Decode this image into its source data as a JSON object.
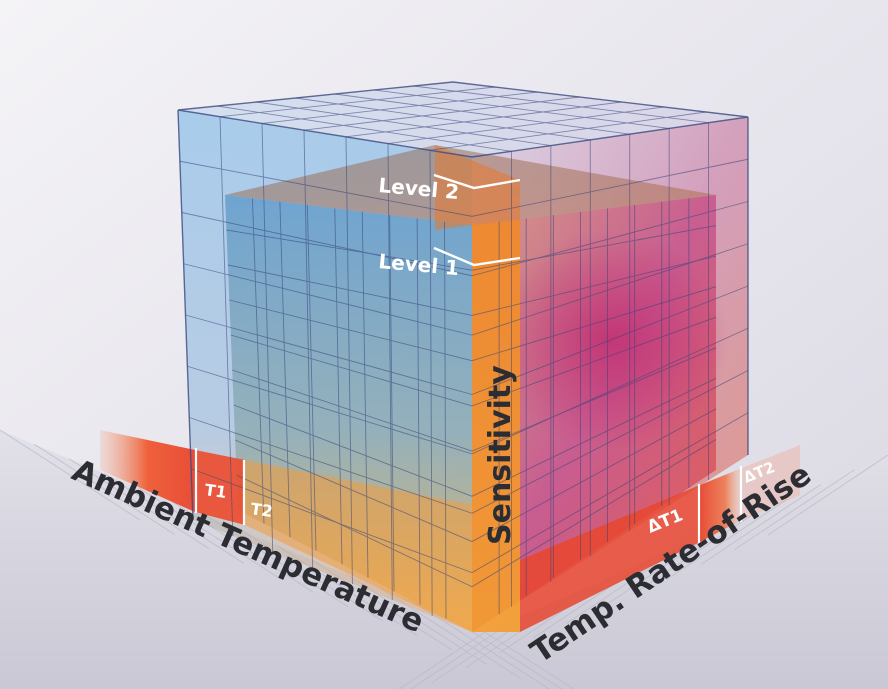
{
  "diagram": {
    "labels": {
      "level_2": "Level 2",
      "level_1": "Level 1",
      "sensitivity": "Sensitivity",
      "t1": "T1",
      "t2": "T2",
      "delta_t1": "ΔT1",
      "delta_t2": "ΔT2",
      "ambient_temperature": "Ambient Temperature",
      "temp_rate_of_rise": "Temp. Rate-of-Rise"
    },
    "colors": {
      "background": "#eceaf0",
      "outer_cube_blue": "#4f9ad6",
      "inner_cube_orange": "#f0892a",
      "hot_red": "#e8452e",
      "magenta_glow": "#c0286e",
      "grid_line": "#34437a",
      "label_text": "#ffffff",
      "axis_text": "#2c2c33"
    }
  }
}
